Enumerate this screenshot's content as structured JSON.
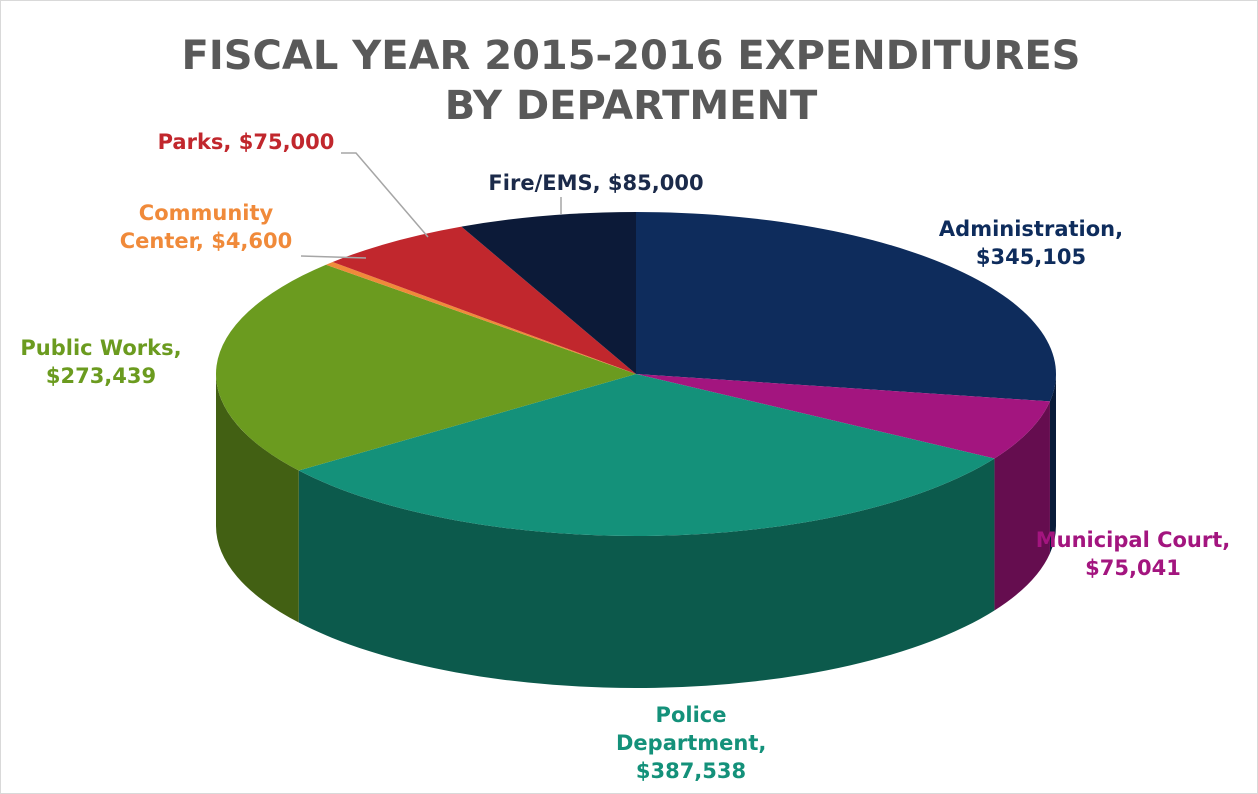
{
  "chart_data": {
    "type": "pie3d",
    "title": "FISCAL YEAR 2015-2016 EXPENDITURES BY DEPARTMENT",
    "categories": [
      "Administration,",
      "Municipal Court,",
      "Police Department,",
      "Public Works,",
      "Community Center,",
      "Parks,",
      "Fire/EMS,"
    ],
    "values": [
      345105,
      75041,
      387538,
      273439,
      4600,
      75000,
      85000
    ],
    "value_labels": [
      "$345,105",
      "$75,041",
      "$387,538",
      "$273,439",
      "$4,600",
      "$75,000",
      "$85,000"
    ],
    "colors": [
      "#0e2c5c",
      "#a3157f",
      "#14917a",
      "#6b9b1f",
      "#f08a3a",
      "#c1272d",
      "#0c1a38"
    ]
  }
}
